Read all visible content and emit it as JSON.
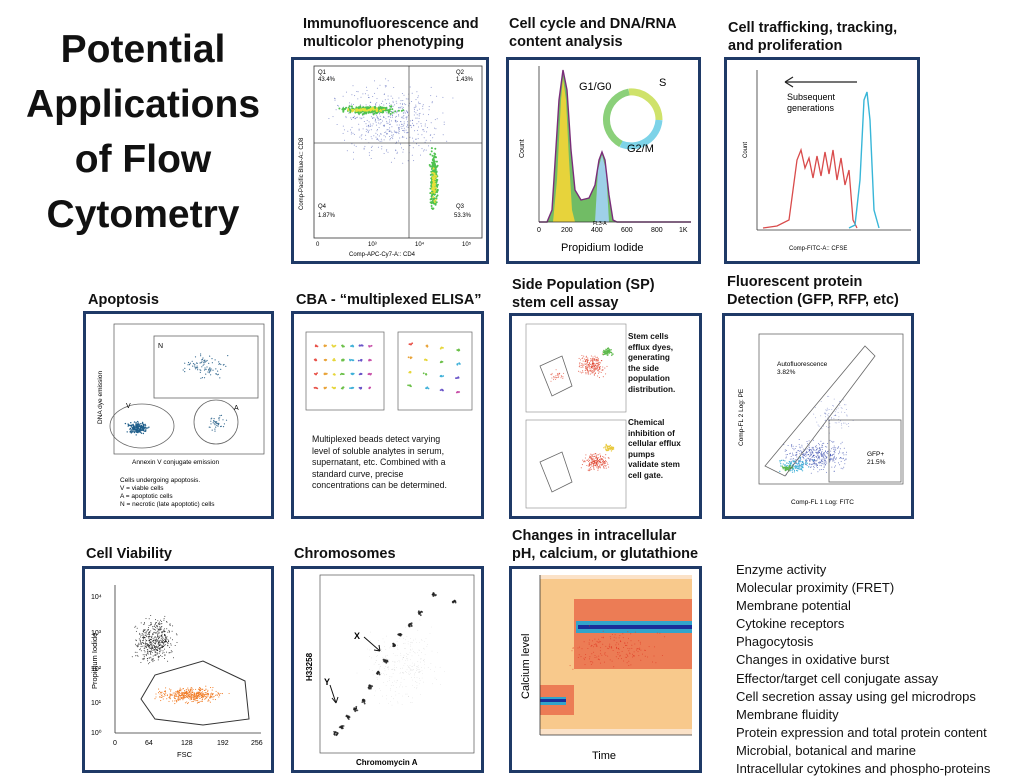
{
  "title_lines": [
    "Potential",
    "Applications",
    "of Flow",
    "Cytometry"
  ],
  "panels": {
    "immuno": {
      "title_lines": [
        "Immunofluorescence and",
        "multicolor phenotyping"
      ],
      "xlabel": "Comp-APC-Cy7-A:: CD4",
      "ylabel": "Comp-Pacific Blue-A:: CD8",
      "quadrants": {
        "q1": "Q1",
        "q1_pct": "43.4%",
        "q2": "Q2",
        "q2_pct": "1.43%",
        "q3": "Q3",
        "q3_pct": "53.3%",
        "q4": "Q4",
        "q4_pct": "1.87%"
      },
      "ticks": [
        "0",
        "10³",
        "10⁴",
        "10⁵"
      ]
    },
    "cellcycle": {
      "title_lines": [
        "Cell cycle and DNA/RNA",
        "content analysis"
      ],
      "xlabel": "Propidium Iodide",
      "ylabel": "Count",
      "phase_g1": "G1/G0",
      "phase_s": "S",
      "phase_g2": "G2/M",
      "xticks": [
        "0",
        "200",
        "400",
        "600",
        "800",
        "1K"
      ],
      "axis_small": "FL3-A"
    },
    "trafficking": {
      "title_lines": [
        "Cell trafficking, tracking,",
        "and proliferation"
      ],
      "annotation_lines": [
        "Subsequent",
        "generations"
      ],
      "xlabel": "Comp-FITC-A:: CFSE",
      "ylabel": "Count"
    },
    "apoptosis": {
      "title": "Apoptosis",
      "ylabel": "DNA dye emission",
      "xlabel": "Annexin V conjugate emission",
      "label_n": "N",
      "label_v": "V",
      "label_a": "A",
      "caption_lines": [
        "Cells undergoing apoptosis.",
        "V = viable cells",
        "A = apoptotic cells",
        "N = necrotic (late apoptotic) cells"
      ]
    },
    "cba": {
      "title": "CBA - “multiplexed ELISA”",
      "text_lines": [
        "Multiplexed beads detect varying",
        "level of soluble analytes in serum,",
        "supernatant, etc. Combined with a",
        "standard curve, precise",
        "concentrations can be determined."
      ]
    },
    "sidepop": {
      "title_lines": [
        "Side Population (SP)",
        "stem cell assay"
      ],
      "text1_lines": [
        "Stem cells",
        "efflux dyes,",
        "generating",
        "the side",
        "population",
        "distribution."
      ],
      "text2_lines": [
        "Chemical",
        "inhibition of",
        "cellular efflux",
        "pumps",
        "validate stem",
        "cell gate."
      ]
    },
    "gfp": {
      "title_lines": [
        "Fluorescent protein",
        "Detection (GFP, RFP, etc)"
      ],
      "autofluor_label": "Autofluorescence",
      "autofluor_pct": "3.82%",
      "gfp_label": "GFP+",
      "gfp_pct": "21.5%",
      "xlabel": "Comp-FL 1 Log: FITC",
      "ylabel": "Comp-FL 2 Log: PE"
    },
    "viability": {
      "title": "Cell Viability",
      "ylabel": "Propidium Iodide",
      "xlabel": "FSC",
      "xticks": [
        "0",
        "64",
        "128",
        "192",
        "256"
      ],
      "yticks": [
        "10⁰",
        "10¹",
        "10²",
        "10³",
        "10⁴"
      ]
    },
    "chromosomes": {
      "title": "Chromosomes",
      "xlabel": "Chromomycin A",
      "ylabel": "H33258",
      "label_x": "X",
      "label_y": "Y"
    },
    "calcium": {
      "title_lines": [
        "Changes in intracellular",
        "pH, calcium, or glutathione"
      ],
      "ylabel": "Calcium level",
      "xlabel": "Time"
    }
  },
  "applications_list": [
    "Enzyme activity",
    "Molecular proximity (FRET)",
    "Membrane potential",
    "Cytokine receptors",
    "Phagocytosis",
    "Changes in oxidative burst",
    "Effector/target cell conjugate assay",
    "Cell secretion assay using gel microdrops",
    "Membrane fluidity",
    "Protein expression and total protein content",
    "Microbial, botanical and marine",
    "Intracellular cytokines and phospho-proteins"
  ],
  "colors": {
    "panel_border": "#1f3a67",
    "scatter_blue": "#2b3fa8",
    "density_green": "#4fc24f",
    "density_yellow": "#e8e03a",
    "histogram_red": "#d94b4b",
    "histogram_cyan": "#38b6d8",
    "calcium_red": "#e0301e",
    "calcium_orange": "#f39a1e",
    "viability_orange": "#f07a23"
  }
}
